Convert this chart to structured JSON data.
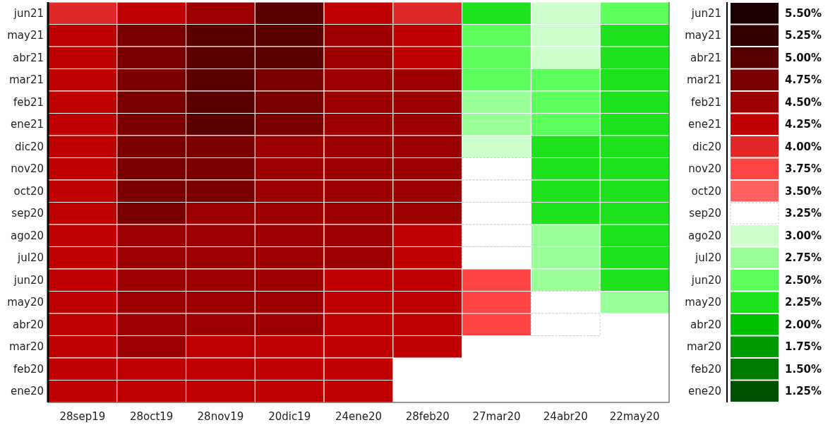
{
  "chart_data": {
    "type": "heatmap",
    "categories": [
      "28sep19",
      "28oct19",
      "28nov19",
      "20dic19",
      "24ene20",
      "28feb20",
      "27mar20",
      "24abr20",
      "22may20"
    ],
    "y_categories": [
      "jun21",
      "may21",
      "abr21",
      "mar21",
      "feb21",
      "ene21",
      "dic20",
      "nov20",
      "oct20",
      "sep20",
      "ago20",
      "jul20",
      "jun20",
      "may20",
      "abr20",
      "mar20",
      "feb20",
      "ene20"
    ],
    "y2_categories": [
      "jun21",
      "may21",
      "abr21",
      "mar21",
      "feb21",
      "ene21",
      "dic20",
      "nov20",
      "oct20",
      "sep20",
      "ago20",
      "jul20",
      "jun20",
      "may20",
      "abr20",
      "mar20",
      "feb20",
      "ene20"
    ],
    "cells": [
      [
        4.0,
        4.25,
        4.5,
        5.0,
        4.25,
        4.0,
        2.25,
        3.0,
        2.5
      ],
      [
        4.25,
        4.75,
        5.0,
        5.0,
        4.5,
        4.25,
        2.5,
        3.0,
        2.25
      ],
      [
        4.25,
        4.75,
        5.0,
        5.0,
        4.5,
        4.25,
        2.5,
        3.0,
        2.25
      ],
      [
        4.25,
        4.75,
        5.0,
        4.75,
        4.5,
        4.5,
        2.5,
        2.5,
        2.25
      ],
      [
        4.25,
        4.75,
        5.0,
        4.75,
        4.5,
        4.5,
        2.75,
        2.5,
        2.25
      ],
      [
        4.25,
        4.75,
        5.0,
        4.75,
        4.5,
        4.5,
        2.75,
        2.5,
        2.25
      ],
      [
        4.25,
        4.75,
        4.75,
        4.5,
        4.5,
        4.5,
        3.0,
        2.25,
        2.25
      ],
      [
        4.25,
        4.75,
        4.75,
        4.5,
        4.5,
        4.5,
        3.25,
        2.25,
        2.25
      ],
      [
        4.25,
        4.75,
        4.75,
        4.5,
        4.5,
        4.5,
        3.25,
        2.25,
        2.25
      ],
      [
        4.25,
        4.75,
        4.5,
        4.5,
        4.5,
        4.5,
        3.25,
        2.25,
        2.25
      ],
      [
        4.25,
        4.5,
        4.5,
        4.5,
        4.5,
        4.25,
        3.25,
        2.75,
        2.25
      ],
      [
        4.25,
        4.5,
        4.5,
        4.5,
        4.5,
        4.25,
        3.25,
        2.75,
        2.25
      ],
      [
        4.25,
        4.5,
        4.5,
        4.5,
        4.25,
        4.25,
        3.75,
        2.75,
        2.25
      ],
      [
        4.25,
        4.5,
        4.5,
        4.5,
        4.25,
        4.25,
        3.75,
        3.25,
        2.75
      ],
      [
        4.25,
        4.5,
        4.5,
        4.5,
        4.25,
        4.25,
        3.75,
        3.25,
        null
      ],
      [
        4.25,
        4.5,
        4.25,
        4.25,
        4.25,
        4.25,
        null,
        null,
        null
      ],
      [
        4.25,
        4.25,
        4.25,
        4.25,
        4.25,
        null,
        null,
        null,
        null
      ],
      [
        4.25,
        4.25,
        4.25,
        4.25,
        4.25,
        null,
        null,
        null,
        null
      ]
    ],
    "clim": [
      1.25,
      5.5
    ],
    "cticks": [
      {
        "value": 5.5,
        "label": "5.50%"
      },
      {
        "value": 5.25,
        "label": "5.25%"
      },
      {
        "value": 5.0,
        "label": "5.00%"
      },
      {
        "value": 4.75,
        "label": "4.75%"
      },
      {
        "value": 4.5,
        "label": "4.50%"
      },
      {
        "value": 4.25,
        "label": "4.25%"
      },
      {
        "value": 4.0,
        "label": "4.00%"
      },
      {
        "value": 3.75,
        "label": "3.75%"
      },
      {
        "value": 3.5,
        "label": "3.50%"
      },
      {
        "value": 3.25,
        "label": "3.25%"
      },
      {
        "value": 3.0,
        "label": "3.00%"
      },
      {
        "value": 2.75,
        "label": "2.75%"
      },
      {
        "value": 2.5,
        "label": "2.50%"
      },
      {
        "value": 2.25,
        "label": "2.25%"
      },
      {
        "value": 2.0,
        "label": "2.00%"
      },
      {
        "value": 1.75,
        "label": "1.75%"
      },
      {
        "value": 1.5,
        "label": "1.50%"
      },
      {
        "value": 1.25,
        "label": "1.25%"
      }
    ],
    "colors": [
      "#1a0000",
      "#330000",
      "#5a0000",
      "#7a0000",
      "#9c0000",
      "#c00000",
      "#e02828",
      "#ff4444",
      "#ff6060",
      "#ffffff",
      "#ccffcc",
      "#99ff99",
      "#5cff5c",
      "#1ee21e",
      "#00c000",
      "#009900",
      "#007a00",
      "#005000"
    ]
  }
}
